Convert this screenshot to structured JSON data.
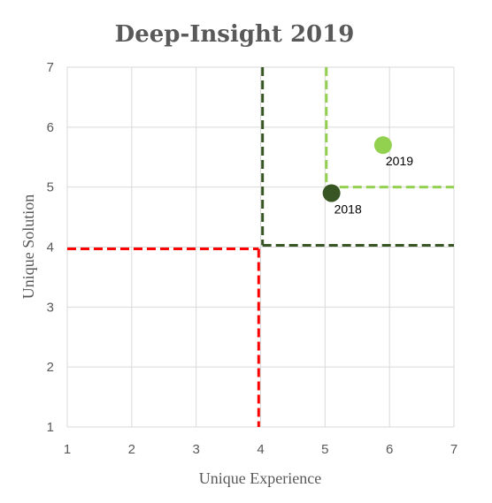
{
  "chart_data": {
    "type": "scatter",
    "title": "Deep-Insight 2019",
    "xlabel": "Unique Experience",
    "ylabel": "Unique Solution",
    "xlim": [
      1,
      7
    ],
    "ylim": [
      1,
      7
    ],
    "xticks": [
      "1",
      "2",
      "3",
      "4",
      "5",
      "6",
      "7"
    ],
    "yticks": [
      "1",
      "2",
      "3",
      "4",
      "5",
      "6",
      "7"
    ],
    "grid": true,
    "points": [
      {
        "label": "2018",
        "x": 5.1,
        "y": 4.9,
        "color": "#375623"
      },
      {
        "label": "2019",
        "x": 5.9,
        "y": 5.7,
        "color": "#92D050"
      }
    ],
    "threshold_lines": [
      {
        "color": "#FF0000",
        "segments": [
          [
            [
              1,
              3.97
            ],
            [
              3.97,
              3.97
            ]
          ],
          [
            [
              3.97,
              3.97
            ],
            [
              3.97,
              1
            ]
          ]
        ]
      },
      {
        "color": "#375623",
        "segments": [
          [
            [
              4.03,
              7
            ],
            [
              4.03,
              4.03
            ]
          ],
          [
            [
              4.03,
              4.03
            ],
            [
              7,
              4.03
            ]
          ]
        ]
      },
      {
        "color": "#92D050",
        "segments": [
          [
            [
              5.02,
              7
            ],
            [
              5.02,
              5
            ]
          ],
          [
            [
              5.02,
              5
            ],
            [
              7,
              5
            ]
          ]
        ]
      }
    ]
  }
}
